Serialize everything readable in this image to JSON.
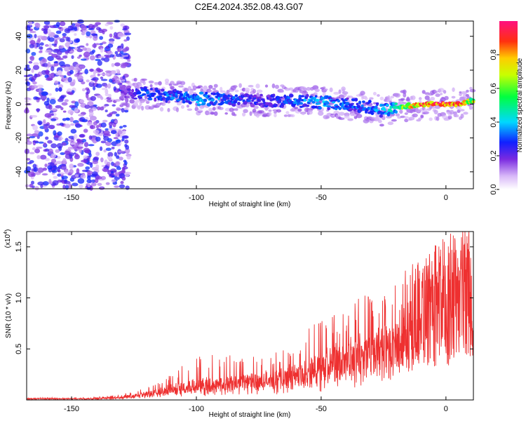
{
  "title": "C2E4.2024.352.08.43.G07",
  "chart_data": [
    {
      "type": "heatmap",
      "xlabel": "Height of straight line (km)",
      "ylabel": "Frequency (Hz)",
      "xlim": [
        -168,
        11
      ],
      "ylim": [
        -50,
        49
      ],
      "x_ticks": [
        -150,
        -100,
        -50,
        0
      ],
      "y_ticks": [
        -40,
        -20,
        0,
        20,
        40
      ],
      "colorbar": {
        "label": "Normalized spectral amplitude",
        "range": [
          0,
          1
        ],
        "ticks": [
          0.0,
          0.2,
          0.4,
          0.6,
          0.8
        ],
        "tick_labels": [
          "0.0",
          "0.2",
          "0.4",
          "0.6",
          "0.8"
        ]
      },
      "noise_region": {
        "x_range": [
          -168,
          -127
        ],
        "freq_range": [
          -50,
          49
        ],
        "amplitude": 0.15
      },
      "ridge": [
        {
          "x": -130,
          "freq": 7,
          "amplitude": 0.2
        },
        {
          "x": -120,
          "freq": 6,
          "amplitude": 0.35
        },
        {
          "x": -110,
          "freq": 5,
          "amplitude": 0.35
        },
        {
          "x": -100,
          "freq": 3,
          "amplitude": 0.4
        },
        {
          "x": -90,
          "freq": 3,
          "amplitude": 0.35
        },
        {
          "x": -80,
          "freq": 2,
          "amplitude": 0.3
        },
        {
          "x": -70,
          "freq": 2,
          "amplitude": 0.3
        },
        {
          "x": -60,
          "freq": 2,
          "amplitude": 0.35
        },
        {
          "x": -50,
          "freq": 1,
          "amplitude": 0.4
        },
        {
          "x": -40,
          "freq": 0,
          "amplitude": 0.35
        },
        {
          "x": -30,
          "freq": -2,
          "amplitude": 0.35
        },
        {
          "x": -25,
          "freq": -4,
          "amplitude": 0.4
        },
        {
          "x": -20,
          "freq": -2,
          "amplitude": 0.5
        },
        {
          "x": -15,
          "freq": -1,
          "amplitude": 0.75
        },
        {
          "x": -10,
          "freq": -0.5,
          "amplitude": 0.9
        },
        {
          "x": -5,
          "freq": 0,
          "amplitude": 0.95
        },
        {
          "x": 0,
          "freq": 0,
          "amplitude": 1.0
        },
        {
          "x": 5,
          "freq": 0,
          "amplitude": 0.95
        },
        {
          "x": 10,
          "freq": 2,
          "amplitude": 0.7
        }
      ]
    },
    {
      "type": "line",
      "xlabel": "Height of straight line (km)",
      "ylabel": "SNR (10 * v/v)",
      "y_multiplier_label": "(x10",
      "y_multiplier_exp": "4",
      "y_multiplier_close": ")",
      "xlim": [
        -168,
        11
      ],
      "ylim": [
        0,
        1.65
      ],
      "x_ticks": [
        -150,
        -100,
        -50,
        0
      ],
      "y_ticks": [
        0.5,
        1.0,
        1.5
      ],
      "y_tick_labels": [
        "0.5",
        "1.0",
        "1.5"
      ],
      "color": "#ee3030",
      "envelope": [
        {
          "x": -168,
          "mean": 0.01,
          "peak": 0.02
        },
        {
          "x": -140,
          "mean": 0.012,
          "peak": 0.03
        },
        {
          "x": -130,
          "mean": 0.02,
          "peak": 0.05
        },
        {
          "x": -120,
          "mean": 0.05,
          "peak": 0.12
        },
        {
          "x": -110,
          "mean": 0.08,
          "peak": 0.25
        },
        {
          "x": -100,
          "mean": 0.1,
          "peak": 0.45
        },
        {
          "x": -90,
          "mean": 0.12,
          "peak": 0.45
        },
        {
          "x": -80,
          "mean": 0.14,
          "peak": 0.5
        },
        {
          "x": -70,
          "mean": 0.15,
          "peak": 0.45
        },
        {
          "x": -60,
          "mean": 0.18,
          "peak": 0.6
        },
        {
          "x": -50,
          "mean": 0.25,
          "peak": 0.8
        },
        {
          "x": -40,
          "mean": 0.32,
          "peak": 0.9
        },
        {
          "x": -30,
          "mean": 0.38,
          "peak": 1.1
        },
        {
          "x": -20,
          "mean": 0.45,
          "peak": 1.15
        },
        {
          "x": -15,
          "mean": 0.75,
          "peak": 1.4
        },
        {
          "x": -10,
          "mean": 0.95,
          "peak": 1.25
        },
        {
          "x": -5,
          "mean": 1.0,
          "peak": 1.15
        },
        {
          "x": 0,
          "mean": 1.05,
          "peak": 1.2
        },
        {
          "x": 5,
          "mean": 1.1,
          "peak": 1.3
        },
        {
          "x": 9,
          "mean": 1.2,
          "peak": 1.65
        },
        {
          "x": 11,
          "mean": 0.6,
          "peak": 0.8
        }
      ]
    }
  ]
}
